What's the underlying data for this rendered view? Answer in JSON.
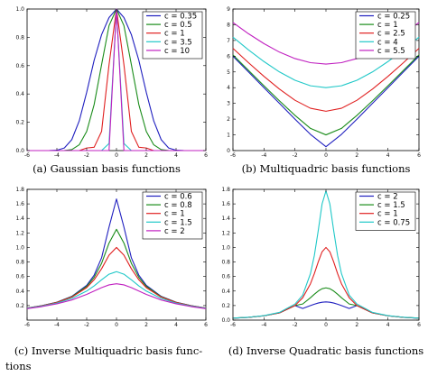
{
  "chart_data": [
    {
      "type": "line",
      "caption": "(a)  Gaussian basis functions",
      "xlim": [
        -6,
        6
      ],
      "ylim": [
        0,
        1.0
      ],
      "xticks": [
        -6,
        -4,
        -2,
        0,
        2,
        4,
        6
      ],
      "yticks": [
        0.0,
        0.2,
        0.4,
        0.6,
        0.8,
        1.0
      ],
      "ytick_labels": [
        "0.0",
        "0.2",
        "0.4",
        "0.6",
        "0.8",
        "1.0"
      ],
      "legend_position": "top-right",
      "grid": false,
      "series": [
        {
          "name": "c = 0.35",
          "color": "#1f1fbf",
          "values": [
            0.0,
            0.0,
            0.0,
            0.0002,
            0.0025,
            0.0183,
            0.0773,
            0.2096,
            0.4118,
            0.6376,
            0.8187,
            0.9394,
            1.0,
            0.9394,
            0.8187,
            0.6376,
            0.4118,
            0.2096,
            0.0773,
            0.0183,
            0.0025,
            0.0002,
            0.0,
            0.0,
            0.0
          ]
        },
        {
          "name": "c = 0.5",
          "color": "#1a8c1a",
          "values": [
            0.0,
            0.0,
            0.0,
            0.0,
            0.0,
            0.0003,
            0.0067,
            0.0408,
            0.1353,
            0.3247,
            0.6065,
            0.8825,
            1.0,
            0.8825,
            0.6065,
            0.3247,
            0.1353,
            0.0408,
            0.0067,
            0.0003,
            0.0,
            0.0,
            0.0,
            0.0,
            0.0
          ]
        },
        {
          "name": "c = 1",
          "color": "#e02020",
          "values": [
            0.0,
            0.0,
            0.0,
            0.0,
            0.0,
            0.0,
            0.0,
            0.0,
            0.0183,
            0.0235,
            0.1353,
            0.6065,
            1.0,
            0.6065,
            0.1353,
            0.0235,
            0.0183,
            0.0,
            0.0,
            0.0,
            0.0,
            0.0,
            0.0,
            0.0,
            0.0
          ]
        },
        {
          "name": "c = 3.5",
          "color": "#20c8c8",
          "values": [
            0.0,
            0.0,
            0.0,
            0.0,
            0.0,
            0.0,
            0.0,
            0.0,
            0.0,
            0.0,
            0.0,
            0.05,
            1.0,
            0.05,
            0.0,
            0.0,
            0.0,
            0.0,
            0.0,
            0.0,
            0.0,
            0.0,
            0.0,
            0.0,
            0.0
          ]
        },
        {
          "name": "c = 10",
          "color": "#c020c0",
          "values": [
            0.0,
            0.0,
            0.0,
            0.0,
            0.0,
            0.0,
            0.0,
            0.0,
            0.0,
            0.0,
            0.0,
            0.0,
            1.0,
            0.0,
            0.0,
            0.0,
            0.0,
            0.0,
            0.0,
            0.0,
            0.0,
            0.0,
            0.0,
            0.0,
            0.0
          ]
        }
      ],
      "x": [
        -6,
        -5.5,
        -5,
        -4.5,
        -4,
        -3.5,
        -3,
        -2.5,
        -2,
        -1.5,
        -1,
        -0.5,
        0,
        0.5,
        1,
        1.5,
        2,
        2.5,
        3,
        3.5,
        4,
        4.5,
        5,
        5.5,
        6
      ]
    },
    {
      "type": "line",
      "caption": "(b)  Multiquadric basis functions",
      "xlim": [
        -6,
        6
      ],
      "ylim": [
        0,
        9
      ],
      "xticks": [
        -6,
        -4,
        -2,
        0,
        2,
        4,
        6
      ],
      "yticks": [
        0,
        1,
        2,
        3,
        4,
        5,
        6,
        7,
        8,
        9
      ],
      "ytick_labels": [
        "0",
        "1",
        "2",
        "3",
        "4",
        "5",
        "6",
        "7",
        "8",
        "9"
      ],
      "legend_position": "top-right",
      "grid": false,
      "x": [
        -6,
        -5,
        -4,
        -3,
        -2,
        -1,
        0,
        1,
        2,
        3,
        4,
        5,
        6
      ],
      "series": [
        {
          "name": "c = 0.25",
          "color": "#1f1fbf",
          "values": [
            6.0,
            5.0,
            4.0,
            3.0,
            2.0,
            1.03,
            0.25,
            1.03,
            2.0,
            3.0,
            4.0,
            5.0,
            6.0
          ]
        },
        {
          "name": "c = 1",
          "color": "#1a8c1a",
          "values": [
            6.08,
            5.1,
            4.12,
            3.16,
            2.24,
            1.41,
            1.0,
            1.41,
            2.24,
            3.16,
            4.12,
            5.1,
            6.08
          ]
        },
        {
          "name": "c = 2.5",
          "color": "#e02020",
          "values": [
            6.5,
            5.59,
            4.72,
            3.91,
            3.2,
            2.69,
            2.5,
            2.69,
            3.2,
            3.91,
            4.72,
            5.59,
            6.5
          ]
        },
        {
          "name": "c = 4",
          "color": "#20c8c8",
          "values": [
            7.21,
            6.4,
            5.66,
            5.0,
            4.47,
            4.12,
            4.0,
            4.12,
            4.47,
            5.0,
            5.66,
            6.4,
            7.21
          ]
        },
        {
          "name": "c = 5.5",
          "color": "#c020c0",
          "values": [
            8.14,
            7.43,
            6.8,
            6.26,
            5.85,
            5.59,
            5.5,
            5.59,
            5.85,
            6.26,
            6.8,
            7.43,
            8.14
          ]
        }
      ]
    },
    {
      "type": "line",
      "caption": "(c)  Inverse  Multiquadric basis func-",
      "caption_line2": "tions",
      "xlim": [
        -6,
        6
      ],
      "ylim": [
        0,
        1.8
      ],
      "xticks": [
        -6,
        -4,
        -2,
        0,
        2,
        4,
        6
      ],
      "yticks": [
        0.2,
        0.4,
        0.6,
        0.8,
        1.0,
        1.2,
        1.4,
        1.6,
        1.8
      ],
      "ytick_labels": [
        "0.2",
        "0.4",
        "0.6",
        "0.8",
        "1.0",
        "1.2",
        "1.4",
        "1.6",
        "1.8"
      ],
      "legend_position": "top-right",
      "grid": false,
      "x": [
        -6,
        -5,
        -4,
        -3,
        -2,
        -1.5,
        -1,
        -0.5,
        0,
        0.5,
        1,
        1.5,
        2,
        3,
        4,
        5,
        6
      ],
      "series": [
        {
          "name": "c = 0.6",
          "color": "#1f1fbf",
          "values": [
            0.166,
            0.199,
            0.247,
            0.327,
            0.479,
            0.619,
            0.857,
            1.28,
            1.667,
            1.28,
            0.857,
            0.619,
            0.479,
            0.327,
            0.247,
            0.199,
            0.166
          ]
        },
        {
          "name": "c = 0.8",
          "color": "#1a8c1a",
          "values": [
            0.165,
            0.198,
            0.245,
            0.322,
            0.464,
            0.588,
            0.781,
            1.06,
            1.25,
            1.06,
            0.781,
            0.588,
            0.464,
            0.322,
            0.245,
            0.198,
            0.165
          ]
        },
        {
          "name": "c = 1",
          "color": "#e02020",
          "values": [
            0.164,
            0.196,
            0.243,
            0.316,
            0.447,
            0.555,
            0.707,
            0.894,
            1.0,
            0.894,
            0.707,
            0.555,
            0.447,
            0.316,
            0.243,
            0.196,
            0.164
          ]
        },
        {
          "name": "c = 1.5",
          "color": "#20c8c8",
          "values": [
            0.162,
            0.192,
            0.234,
            0.298,
            0.4,
            0.471,
            0.555,
            0.632,
            0.667,
            0.632,
            0.555,
            0.471,
            0.4,
            0.298,
            0.234,
            0.192,
            0.162
          ]
        },
        {
          "name": "c = 2",
          "color": "#c020c0",
          "values": [
            0.158,
            0.186,
            0.224,
            0.277,
            0.354,
            0.4,
            0.447,
            0.485,
            0.5,
            0.485,
            0.447,
            0.4,
            0.354,
            0.277,
            0.224,
            0.186,
            0.158
          ]
        }
      ]
    },
    {
      "type": "line",
      "caption": "(d)  Inverse Quadratic basis functions",
      "xlim": [
        -6,
        6
      ],
      "ylim": [
        0,
        1.8
      ],
      "xticks": [
        -6,
        -4,
        -2,
        0,
        2,
        4,
        6
      ],
      "yticks": [
        0.0,
        0.2,
        0.4,
        0.6,
        0.8,
        1.0,
        1.2,
        1.4,
        1.6,
        1.8
      ],
      "ytick_labels": [
        "0.0",
        "0.2",
        "0.4",
        "0.6",
        "0.8",
        "1.0",
        "1.2",
        "1.4",
        "1.6",
        "1.8"
      ],
      "legend_position": "top-right",
      "grid": false,
      "x": [
        -6,
        -5,
        -4,
        -3,
        -2,
        -1.5,
        -1,
        -0.75,
        -0.5,
        -0.25,
        0,
        0.25,
        0.5,
        0.75,
        1,
        1.5,
        2,
        3,
        4,
        5,
        6
      ],
      "series": [
        {
          "name": "c = 2",
          "color": "#1f1fbf",
          "values": [
            0.025,
            0.038,
            0.059,
            0.1,
            0.2,
            0.16,
            0.2,
            0.219,
            0.235,
            0.246,
            0.25,
            0.246,
            0.235,
            0.219,
            0.2,
            0.16,
            0.2,
            0.1,
            0.059,
            0.038,
            0.025
          ]
        },
        {
          "name": "c = 1.5",
          "color": "#1a8c1a",
          "values": [
            0.027,
            0.038,
            0.059,
            0.1,
            0.2,
            0.222,
            0.308,
            0.356,
            0.4,
            0.432,
            0.444,
            0.432,
            0.4,
            0.356,
            0.308,
            0.222,
            0.2,
            0.1,
            0.059,
            0.038,
            0.027
          ]
        },
        {
          "name": "c = 1",
          "color": "#e02020",
          "values": [
            0.027,
            0.038,
            0.059,
            0.1,
            0.2,
            0.308,
            0.5,
            0.64,
            0.8,
            0.941,
            1.0,
            0.941,
            0.8,
            0.64,
            0.5,
            0.308,
            0.2,
            0.1,
            0.059,
            0.038,
            0.027
          ]
        },
        {
          "name": "c = 0.75",
          "color": "#20c8c8",
          "values": [
            0.027,
            0.039,
            0.061,
            0.106,
            0.221,
            0.343,
            0.64,
            0.889,
            1.23,
            1.6,
            1.778,
            1.6,
            1.23,
            0.889,
            0.64,
            0.343,
            0.221,
            0.106,
            0.061,
            0.039,
            0.027
          ]
        }
      ]
    }
  ]
}
